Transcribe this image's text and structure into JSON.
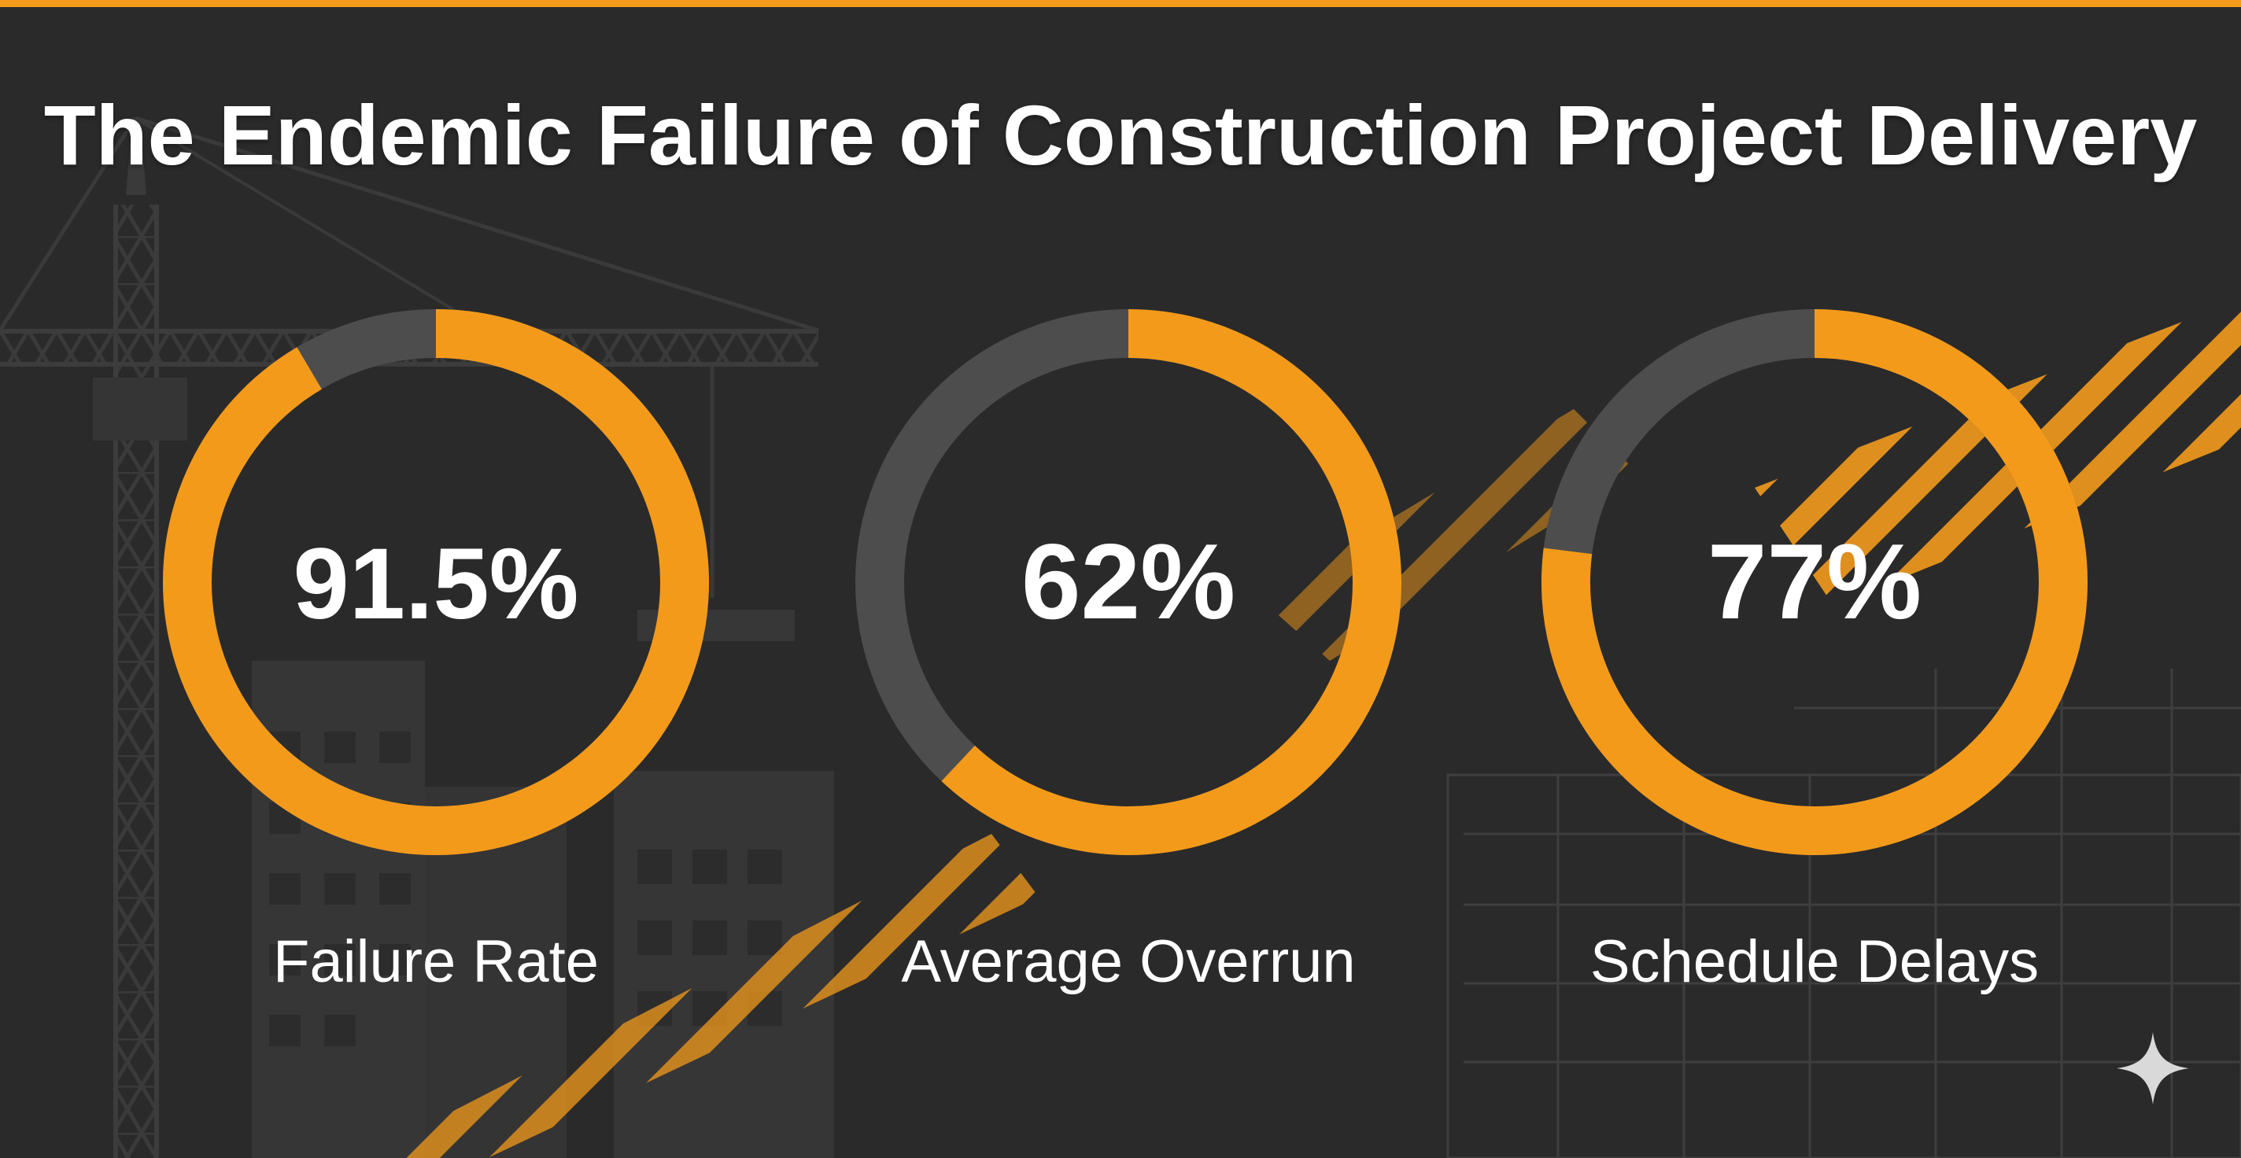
{
  "title": "The Endemic Failure of Construction Project Delivery",
  "colors": {
    "background": "#2a2a2a",
    "accent": "#f39a1b",
    "track": "#4d4d4d",
    "text": "#ffffff",
    "silhouette": "#393939"
  },
  "chart_data": {
    "type": "pie",
    "variant": "donut",
    "title": "The Endemic Failure of Construction Project Delivery",
    "series": [
      {
        "name": "Failure Rate",
        "value": 91.5,
        "label": "91.5%"
      },
      {
        "name": "Average Overrun",
        "value": 62,
        "label": "62%"
      },
      {
        "name": "Schedule Delays",
        "value": 77,
        "label": "77%"
      }
    ],
    "unit": "%",
    "max": 100,
    "legend": "none"
  },
  "decor": {
    "logo_icon": "sparkle-icon",
    "background_art": "construction-crane-and-buildings-silhouette",
    "hazard_stripes": "hazard-stripe-bands"
  }
}
